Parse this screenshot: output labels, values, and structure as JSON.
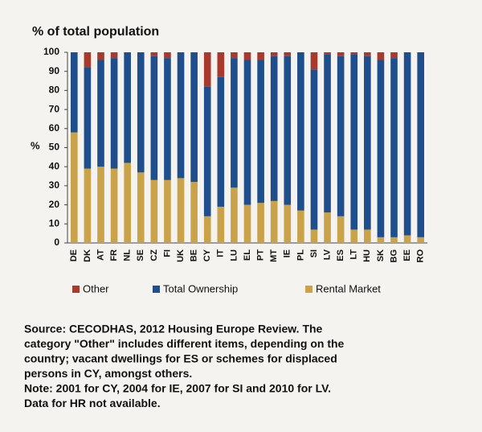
{
  "chart_data": {
    "type": "stacked_bar",
    "title": "% of total population",
    "y_label": "%",
    "categories": [
      "DE",
      "DK",
      "AT",
      "FR",
      "NL",
      "SE",
      "CZ",
      "FI",
      "UK",
      "BE",
      "CY",
      "IT",
      "LU",
      "EL",
      "PT",
      "MT",
      "IE",
      "PL",
      "SI",
      "LV",
      "ES",
      "LT",
      "HU",
      "SK",
      "BG",
      "EE",
      "RO"
    ],
    "series": [
      {
        "name": "Rental Market",
        "color": "#c9a24a",
        "values": [
          58,
          39,
          40,
          39,
          42,
          37,
          33,
          33,
          34,
          32,
          14,
          19,
          29,
          20,
          21,
          22,
          20,
          17,
          7,
          16,
          14,
          7,
          7,
          3,
          3,
          4,
          3
        ]
      },
      {
        "name": "Total Ownership",
        "color": "#1f4e8c",
        "values": [
          42,
          53,
          56,
          58,
          58,
          63,
          65,
          64,
          66,
          68,
          68,
          68,
          68,
          76,
          75,
          76,
          78,
          83,
          84,
          83,
          84,
          92,
          91,
          93,
          94,
          96,
          97
        ]
      },
      {
        "name": "Other",
        "color": "#a8392b",
        "values": [
          0,
          8,
          4,
          3,
          0,
          0,
          2,
          3,
          0,
          0,
          18,
          13,
          3,
          4,
          4,
          2,
          2,
          0,
          9,
          1,
          2,
          1,
          2,
          4,
          3,
          0,
          0
        ]
      }
    ],
    "legend_order": [
      2,
      1,
      0
    ],
    "ylim": [
      0,
      100
    ],
    "yticks": [
      0,
      10,
      20,
      30,
      40,
      50,
      60,
      70,
      80,
      90,
      100
    ],
    "notes": [
      "Source: CECODHAS, 2012 Housing Europe Review. The",
      "category \"Other\" includes different items, depending on the",
      "country; vacant dwellings for ES or schemes for displaced",
      "persons in CY, amongst others.",
      "Note: 2001 for CY, 2004 for IE, 2007 for SI and 2010 for LV.",
      "Data for HR not available."
    ]
  }
}
